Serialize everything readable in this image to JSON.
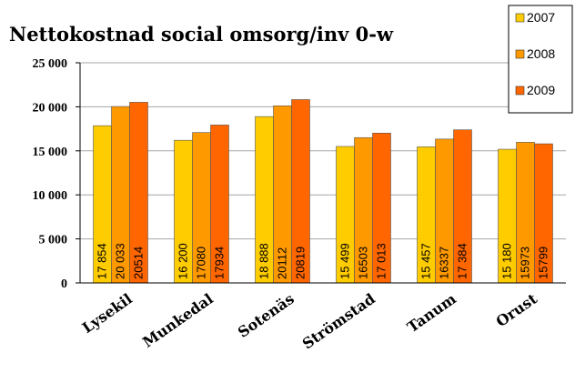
{
  "chart_data": {
    "type": "bar",
    "title": "Nettokostnad social omsorg/inv 0-w",
    "categories": [
      "Lysekil",
      "Munkedal",
      "Sotenäs",
      "Strömstad",
      "Tanum",
      "Orust"
    ],
    "series": [
      {
        "name": "2007",
        "color": "#FFCC00",
        "values": [
          17854,
          16200,
          18888,
          15499,
          15457,
          15180
        ]
      },
      {
        "name": "2008",
        "color": "#FF9900",
        "values": [
          20033,
          17080,
          20112,
          16503,
          16337,
          15973
        ]
      },
      {
        "name": "2009",
        "color": "#FF6600",
        "values": [
          20514,
          17934,
          20819,
          17013,
          17384,
          15799
        ]
      }
    ],
    "data_labels": [
      [
        "17 854",
        "16 200",
        "18 888",
        "15 499",
        "15 457",
        "15 180"
      ],
      [
        "20 033",
        "17080",
        "20112",
        "16503",
        "16337",
        "15973"
      ],
      [
        "20514",
        "17934",
        "20819",
        "17 013",
        "17 384",
        "15799"
      ]
    ],
    "yticks": [
      "0",
      "5 000",
      "10 000",
      "15 000",
      "20 000",
      "25 000"
    ],
    "ylim": [
      0,
      25000
    ],
    "xlabel": "",
    "ylabel": "",
    "grid": true,
    "legend": "top-right"
  }
}
